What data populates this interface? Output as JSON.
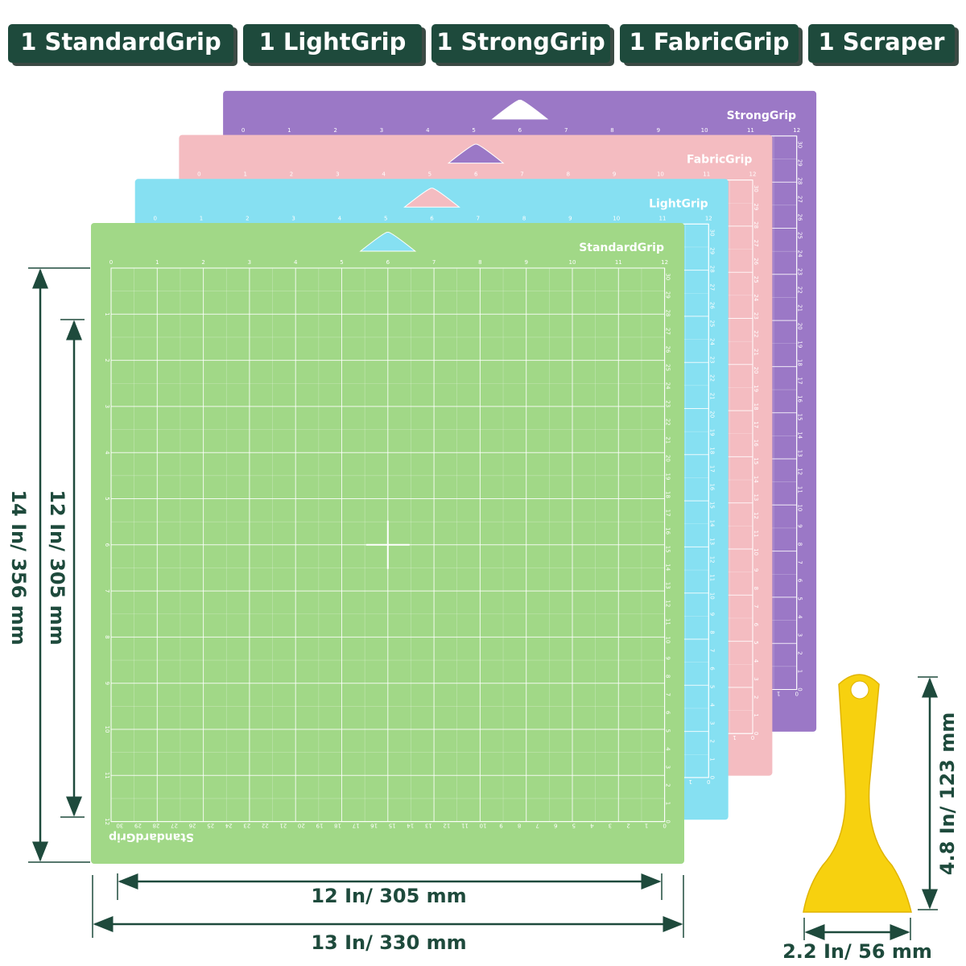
{
  "badges": [
    "1 StandardGrip",
    "1 LightGrip",
    "1 StrongGrip",
    "1 FabricGrip",
    "1 Scraper"
  ],
  "mats": [
    {
      "label": "StrongGrip",
      "color": "#9b78c6"
    },
    {
      "label": "FabricGrip",
      "color": "#f4bcc1"
    },
    {
      "label": "LightGrip",
      "color": "#86e0f2"
    },
    {
      "label": "StandardGrip",
      "color": "#a1d887"
    }
  ],
  "ruler": {
    "inches": [
      0,
      1,
      2,
      3,
      4,
      5,
      6,
      7,
      8,
      9,
      10,
      11,
      12
    ],
    "cm": [
      0,
      1,
      2,
      3,
      4,
      5,
      6,
      7,
      8,
      9,
      10,
      11,
      12,
      13,
      14,
      15,
      16,
      17,
      18,
      19,
      20,
      21,
      22,
      23,
      24,
      25,
      26,
      27,
      28,
      29,
      30
    ]
  },
  "dimensions": {
    "mat_height": "14 In/ 356 mm",
    "grid_height": "12 In/ 305 mm",
    "grid_width": "12 In/ 305 mm",
    "mat_width": "13 In/ 330 mm",
    "scraper_height": "4.8 In/ 123 mm",
    "scraper_width": "2.2 In/ 56 mm"
  }
}
